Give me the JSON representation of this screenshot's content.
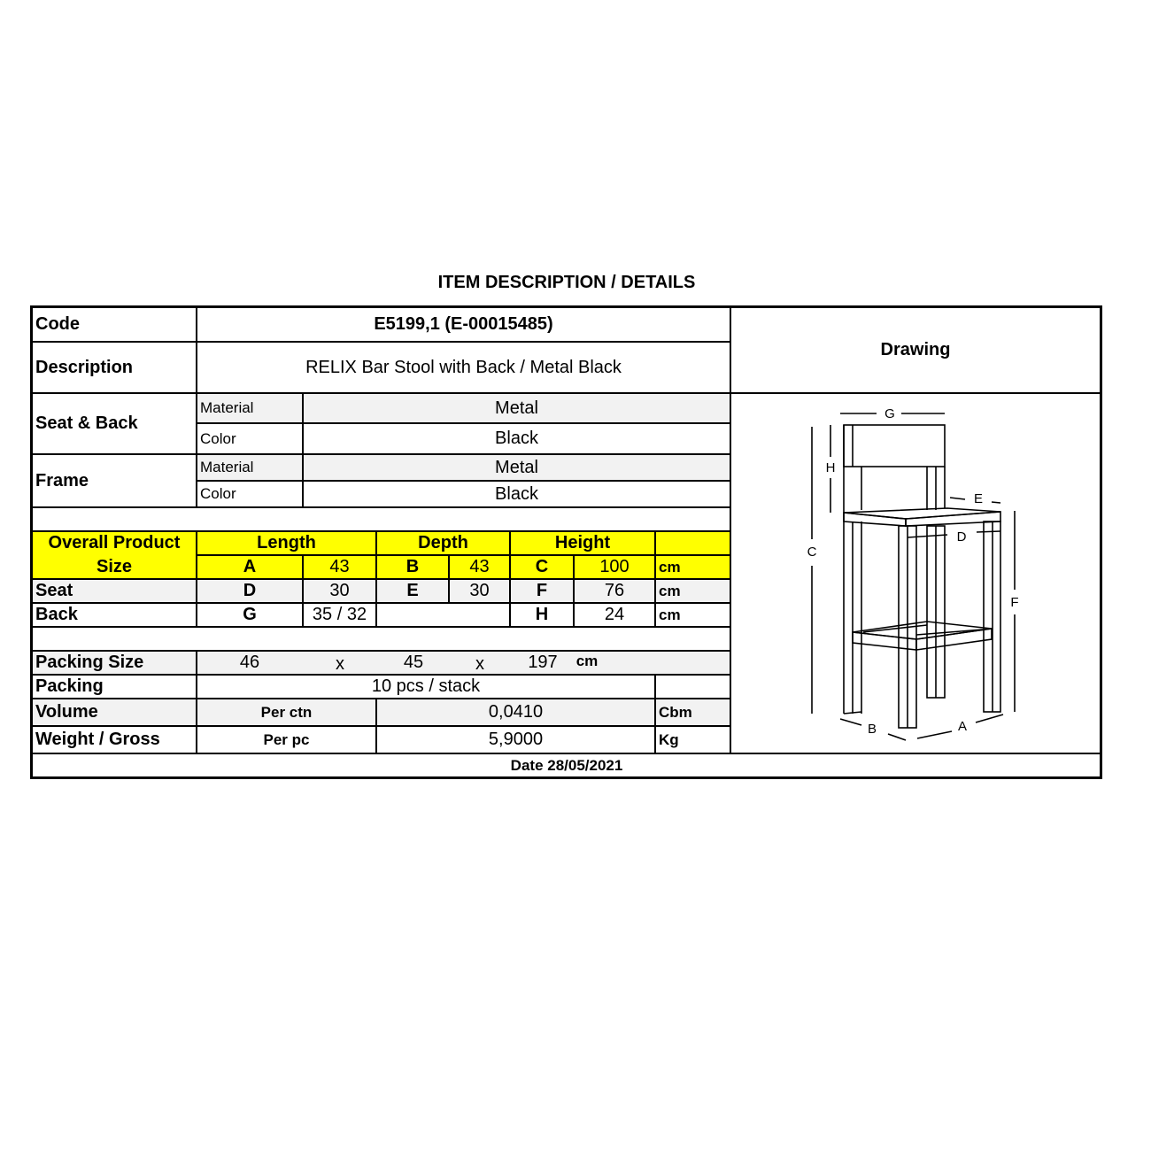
{
  "title": "ITEM DESCRIPTION / DETAILS",
  "code": {
    "label": "Code",
    "value": "E5199,1 (E-00015485)"
  },
  "description": {
    "label": "Description",
    "value": "RELIX Bar Stool with Back / Metal Black"
  },
  "drawing_label": "Drawing",
  "seat_back": {
    "label": "Seat & Back",
    "material_label": "Material",
    "material": "Metal",
    "color_label": "Color",
    "color": "Black"
  },
  "frame": {
    "label": "Frame",
    "material_label": "Material",
    "material": "Metal",
    "color_label": "Color",
    "color": "Black"
  },
  "size": {
    "header": {
      "label1": "Overall Product",
      "label2": "Size",
      "length": "Length",
      "depth": "Depth",
      "height": "Height"
    },
    "overall": {
      "a": "A",
      "a_val": "43",
      "b": "B",
      "b_val": "43",
      "c": "C",
      "c_val": "100",
      "unit": "cm"
    },
    "seat": {
      "label": "Seat",
      "d": "D",
      "d_val": "30",
      "e": "E",
      "e_val": "30",
      "f": "F",
      "f_val": "76",
      "unit": "cm"
    },
    "back": {
      "label": "Back",
      "g": "G",
      "g_val": "35 / 32",
      "h": "H",
      "h_val": "24",
      "unit": "cm"
    }
  },
  "packing_size": {
    "label": "Packing Size",
    "l": "46",
    "x1": "x",
    "w": "45",
    "x2": "x",
    "h": "197",
    "unit": "cm"
  },
  "packing": {
    "label": "Packing",
    "value": "10 pcs / stack"
  },
  "volume": {
    "label": "Volume",
    "basis": "Per ctn",
    "value": "0,0410",
    "unit": "Cbm"
  },
  "weight": {
    "label": "Weight / Gross",
    "basis": "Per pc",
    "value": "5,9000",
    "unit": "Kg"
  },
  "date": "Date 28/05/2021",
  "drawing_dims": {
    "a": "A",
    "b": "B",
    "c": "C",
    "d": "D",
    "e": "E",
    "f": "F",
    "g": "G",
    "h": "H"
  },
  "colors": {
    "highlight": "#ffff00",
    "row_shade": "#f2f2f2"
  }
}
